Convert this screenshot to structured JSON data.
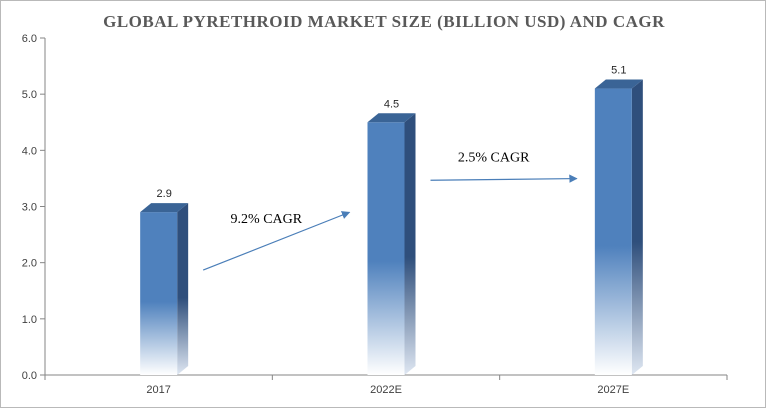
{
  "chart_data": {
    "type": "bar",
    "title": "GLOBAL PYRETHROID  MARKET SIZE  (BILLION USD) AND CAGR",
    "categories": [
      "2017",
      "2022E",
      "2027E"
    ],
    "values": [
      2.9,
      4.5,
      5.1
    ],
    "value_labels": [
      "2.9",
      "4.5",
      "5.1"
    ],
    "ylim": [
      0,
      6
    ],
    "yticks": [
      "0.0",
      "1.0",
      "2.0",
      "3.0",
      "4.0",
      "5.0",
      "6.0"
    ],
    "grid": false,
    "legend": "none",
    "annotations": [
      {
        "text": "9.2% CAGR",
        "from_category": "2017",
        "to_category": "2022E"
      },
      {
        "text": "2.5% CAGR",
        "from_category": "2022E",
        "to_category": "2027E"
      }
    ]
  },
  "colors": {
    "bar_front": "#4f81bd",
    "bar_side": "#2f4f7c",
    "bar_top": "#3a6496",
    "arrow": "#4a7eb8",
    "axis": "#868686"
  }
}
